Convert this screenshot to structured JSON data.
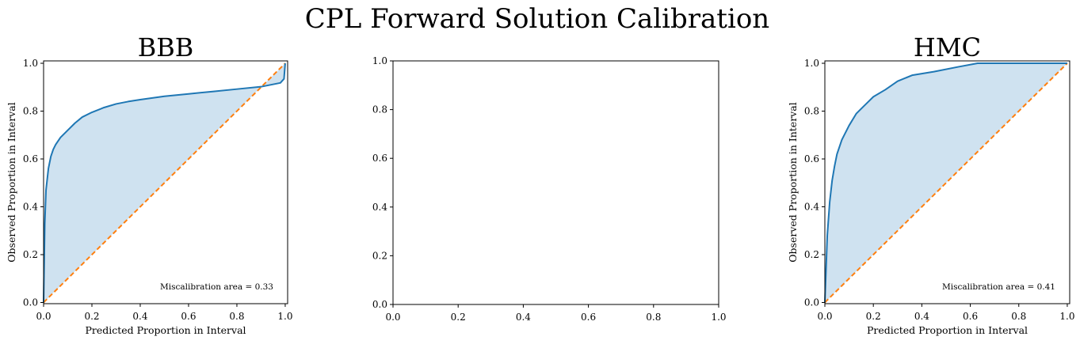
{
  "figure": {
    "suptitle": "CPL Forward Solution Calibration"
  },
  "chart_data": [
    {
      "type": "line",
      "title": "BBB",
      "xlabel": "Predicted Proportion in Interval",
      "ylabel": "Observed Proportion in Interval",
      "xlim": [
        0,
        1.01
      ],
      "ylim": [
        -0.005,
        1.01
      ],
      "xticks": [
        "0.0",
        "0.2",
        "0.4",
        "0.6",
        "0.8",
        "1.0"
      ],
      "yticks": [
        "0.0",
        "0.2",
        "0.4",
        "0.6",
        "0.8",
        "1.0"
      ],
      "grid": false,
      "annotation": "Miscalibration area = 0.33",
      "series": [
        {
          "role": "calibration",
          "color": "#1f77b4",
          "fill": "#cfe2f0",
          "x": [
            0,
            0.005,
            0.01,
            0.02,
            0.03,
            0.04,
            0.05,
            0.07,
            0.1,
            0.13,
            0.16,
            0.2,
            0.25,
            0.3,
            0.35,
            0.4,
            0.5,
            0.6,
            0.7,
            0.8,
            0.9,
            0.98,
            0.995,
            1.0
          ],
          "y": [
            0,
            0.33,
            0.47,
            0.56,
            0.61,
            0.64,
            0.66,
            0.69,
            0.72,
            0.75,
            0.775,
            0.795,
            0.815,
            0.83,
            0.84,
            0.848,
            0.862,
            0.872,
            0.882,
            0.892,
            0.902,
            0.918,
            0.935,
            1.0
          ]
        },
        {
          "role": "ideal",
          "color": "#ff7f0e",
          "dashed": true,
          "x": [
            0,
            1
          ],
          "y": [
            0,
            1
          ]
        }
      ]
    },
    {
      "type": "line",
      "title": "",
      "xlabel": "",
      "ylabel": "",
      "xlim": [
        0,
        1
      ],
      "ylim": [
        0,
        1
      ],
      "xticks": [
        "0.0",
        "0.2",
        "0.4",
        "0.6",
        "0.8",
        "1.0"
      ],
      "yticks": [
        "0.0",
        "0.2",
        "0.4",
        "0.6",
        "0.8",
        "1.0"
      ],
      "grid": false,
      "annotation": "",
      "series": []
    },
    {
      "type": "line",
      "title": "HMC",
      "xlabel": "Predicted Proportion in Interval",
      "ylabel": "Observed Proportion in Interval",
      "xlim": [
        0,
        1.01
      ],
      "ylim": [
        -0.005,
        1.01
      ],
      "xticks": [
        "0.0",
        "0.2",
        "0.4",
        "0.6",
        "0.8",
        "1.0"
      ],
      "yticks": [
        "0.0",
        "0.2",
        "0.4",
        "0.6",
        "0.8",
        "1.0"
      ],
      "grid": false,
      "annotation": "Miscalibration area = 0.41",
      "series": [
        {
          "role": "calibration",
          "color": "#1f77b4",
          "fill": "#cfe2f0",
          "x": [
            0,
            0.01,
            0.02,
            0.03,
            0.04,
            0.05,
            0.07,
            0.1,
            0.13,
            0.16,
            0.2,
            0.25,
            0.3,
            0.36,
            0.45,
            0.55,
            0.63,
            0.7,
            0.8,
            0.9,
            1.0
          ],
          "y": [
            0,
            0.28,
            0.42,
            0.51,
            0.57,
            0.62,
            0.68,
            0.74,
            0.79,
            0.82,
            0.86,
            0.89,
            0.925,
            0.95,
            0.965,
            0.985,
            1.0,
            1.0,
            1.0,
            1.0,
            1.0
          ]
        },
        {
          "role": "ideal",
          "color": "#ff7f0e",
          "dashed": true,
          "x": [
            0,
            1
          ],
          "y": [
            0,
            1
          ]
        }
      ]
    }
  ]
}
